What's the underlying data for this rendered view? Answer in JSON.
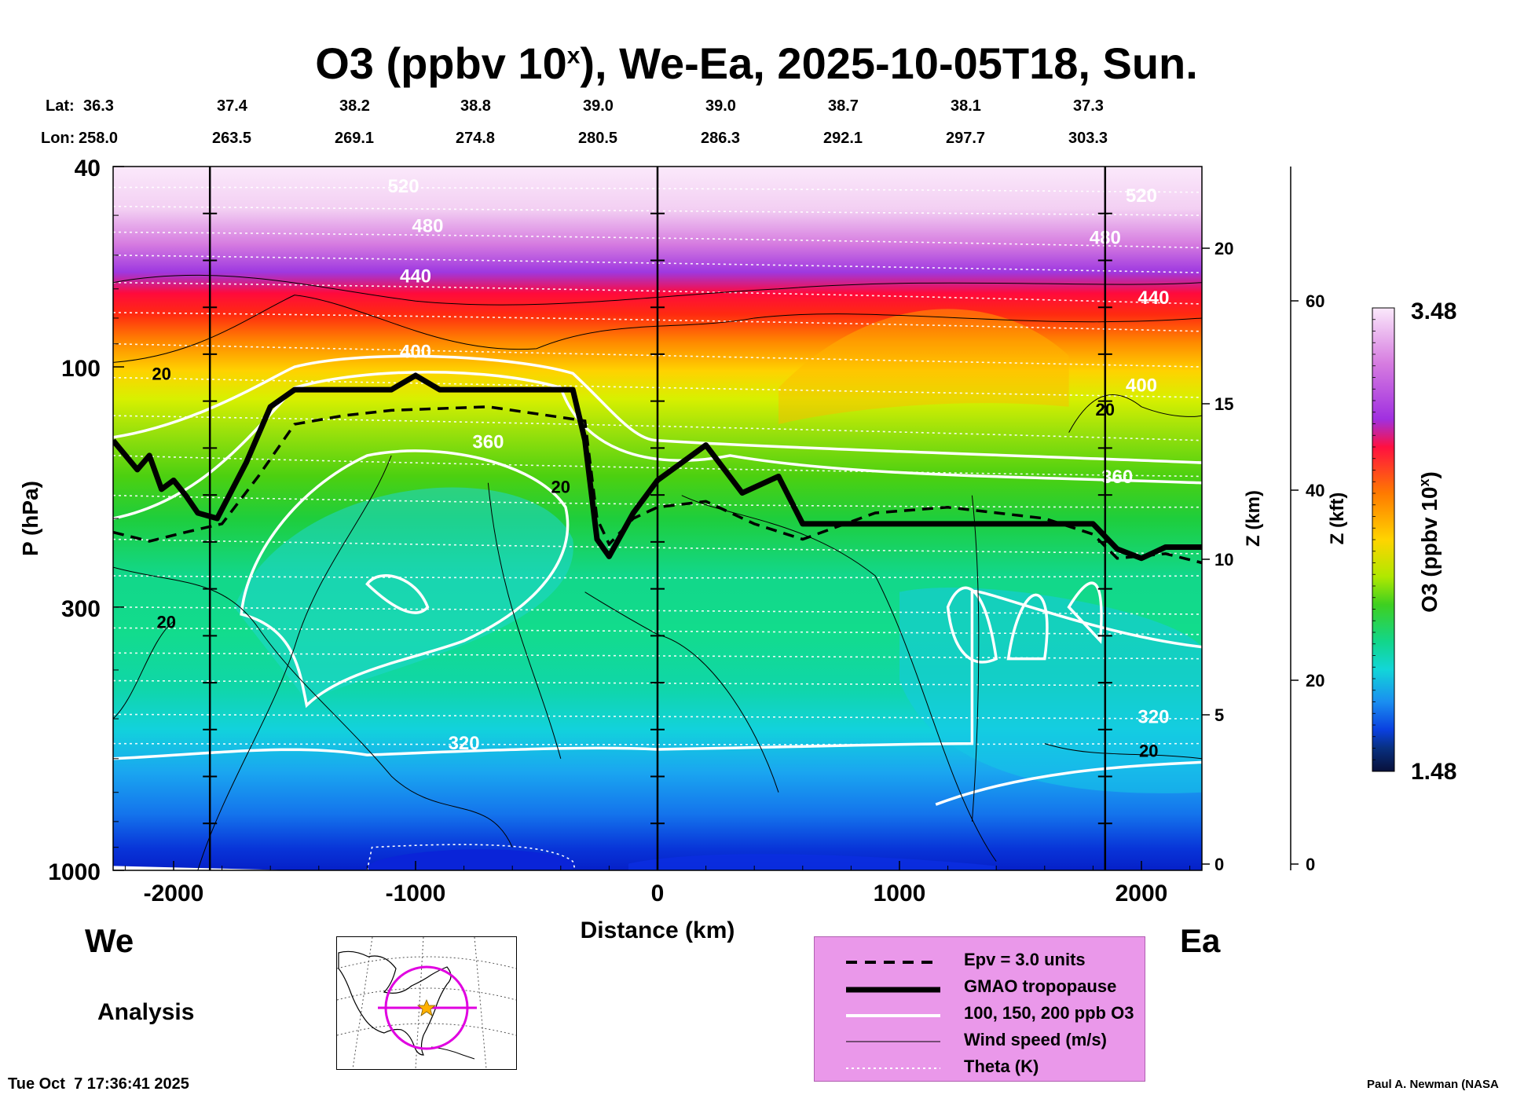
{
  "title": {
    "main": "O3 (ppbv 10",
    "sup": "x",
    "rest": "), We-Ea, 2025-10-05T18, Sun."
  },
  "header": {
    "lat_label": "Lat:",
    "lon_label": "Lon:",
    "lat": [
      "36.3",
      "37.4",
      "38.2",
      "38.8",
      "39.0",
      "39.0",
      "38.7",
      "38.1",
      "37.3"
    ],
    "lon": [
      "258.0",
      "263.5",
      "269.1",
      "274.8",
      "280.5",
      "286.3",
      "292.1",
      "297.7",
      "303.3"
    ]
  },
  "chart_data": {
    "type": "heatmap",
    "title": "O3 (ppbv 10^x), We-Ea, 2025-10-05T18, Sun.",
    "xlabel": "Distance (km)",
    "ylabel": "P (hPa)",
    "xlim": [
      -2250,
      2250
    ],
    "ylim_hPa": [
      1000,
      40
    ],
    "x_ticks": [
      -2000,
      -1000,
      0,
      1000,
      2000
    ],
    "y_ticks": [
      {
        "value": 40,
        "label": "40"
      },
      {
        "value": 100,
        "label": "100"
      },
      {
        "value": 300,
        "label": "300"
      },
      {
        "value": 1000,
        "label": "1000"
      }
    ],
    "z_km_label": "Z (km)",
    "z_km_ticks": [
      "0",
      "5",
      "10",
      "15",
      "20"
    ],
    "z_kft_label": "Z (kft)",
    "z_kft_ticks": [
      "0",
      "20",
      "40",
      "60"
    ],
    "section_markers_km": [
      -1850,
      0,
      1850
    ],
    "colorbar": {
      "label": "O3 (ppbv 10",
      "label_sup": "x",
      "label_end": ")",
      "min": 1.48,
      "max": 3.48,
      "min_label": "1.48",
      "max_label": "3.48"
    },
    "theta_labels": [
      {
        "text": "520",
        "x": -1050,
        "p": 45
      },
      {
        "text": "520",
        "x": 2000,
        "p": 47
      },
      {
        "text": "480",
        "x": -950,
        "p": 54
      },
      {
        "text": "480",
        "x": 1850,
        "p": 57
      },
      {
        "text": "440",
        "x": -1000,
        "p": 68
      },
      {
        "text": "440",
        "x": 2050,
        "p": 75
      },
      {
        "text": "400",
        "x": -1000,
        "p": 96
      },
      {
        "text": "400",
        "x": 2000,
        "p": 112
      },
      {
        "text": "360",
        "x": -700,
        "p": 145
      },
      {
        "text": "360",
        "x": 1900,
        "p": 170
      },
      {
        "text": "320",
        "x": -800,
        "p": 575
      },
      {
        "text": "320",
        "x": 2050,
        "p": 510
      }
    ],
    "wind_labels": [
      {
        "text": "20",
        "x": -2050,
        "p": 106
      },
      {
        "text": "20",
        "x": -400,
        "p": 178
      },
      {
        "text": "20",
        "x": 1850,
        "p": 125
      },
      {
        "text": "20",
        "x": -2030,
        "p": 330
      },
      {
        "text": "20",
        "x": 2030,
        "p": 595
      }
    ],
    "tropopause": [
      {
        "x": -2250,
        "p": 140
      },
      {
        "x": -2150,
        "p": 160
      },
      {
        "x": -2100,
        "p": 150
      },
      {
        "x": -2050,
        "p": 175
      },
      {
        "x": -2000,
        "p": 168
      },
      {
        "x": -1950,
        "p": 180
      },
      {
        "x": -1900,
        "p": 195
      },
      {
        "x": -1820,
        "p": 200
      },
      {
        "x": -1700,
        "p": 155
      },
      {
        "x": -1600,
        "p": 120
      },
      {
        "x": -1500,
        "p": 111
      },
      {
        "x": -1100,
        "p": 111
      },
      {
        "x": -1000,
        "p": 104
      },
      {
        "x": -900,
        "p": 111
      },
      {
        "x": -350,
        "p": 111
      },
      {
        "x": -300,
        "p": 140
      },
      {
        "x": -250,
        "p": 220
      },
      {
        "x": -200,
        "p": 238
      },
      {
        "x": -100,
        "p": 195
      },
      {
        "x": 0,
        "p": 168
      },
      {
        "x": 100,
        "p": 155
      },
      {
        "x": 200,
        "p": 143
      },
      {
        "x": 350,
        "p": 178
      },
      {
        "x": 500,
        "p": 165
      },
      {
        "x": 600,
        "p": 205
      },
      {
        "x": 1000,
        "p": 205
      },
      {
        "x": 1800,
        "p": 205
      },
      {
        "x": 1900,
        "p": 230
      },
      {
        "x": 2000,
        "p": 240
      },
      {
        "x": 2100,
        "p": 228
      },
      {
        "x": 2250,
        "p": 228
      }
    ],
    "epv_3": [
      {
        "x": -2250,
        "p": 213
      },
      {
        "x": -2100,
        "p": 222
      },
      {
        "x": -1950,
        "p": 213
      },
      {
        "x": -1800,
        "p": 205
      },
      {
        "x": -1650,
        "p": 165
      },
      {
        "x": -1500,
        "p": 130
      },
      {
        "x": -1300,
        "p": 125
      },
      {
        "x": -1100,
        "p": 122
      },
      {
        "x": -700,
        "p": 120
      },
      {
        "x": -300,
        "p": 128
      },
      {
        "x": -250,
        "p": 200
      },
      {
        "x": -200,
        "p": 225
      },
      {
        "x": -100,
        "p": 200
      },
      {
        "x": 0,
        "p": 190
      },
      {
        "x": 200,
        "p": 185
      },
      {
        "x": 400,
        "p": 205
      },
      {
        "x": 600,
        "p": 220
      },
      {
        "x": 900,
        "p": 195
      },
      {
        "x": 1200,
        "p": 190
      },
      {
        "x": 1600,
        "p": 200
      },
      {
        "x": 1800,
        "p": 215
      },
      {
        "x": 1900,
        "p": 240
      },
      {
        "x": 2100,
        "p": 235
      },
      {
        "x": 2250,
        "p": 245
      }
    ],
    "legend": [
      {
        "style": "dashed",
        "label": "Epv = 3.0 units"
      },
      {
        "style": "thick",
        "label": "GMAO tropopause"
      },
      {
        "style": "white",
        "label": "100, 150, 200 ppb O3"
      },
      {
        "style": "thin",
        "label": "Wind speed (m/s)"
      },
      {
        "style": "dotted",
        "label": "Theta (K)"
      }
    ]
  },
  "labels": {
    "west": "We",
    "east": "Ea",
    "analysis": "Analysis",
    "timestamp": "Tue Oct  7 17:36:41 2025",
    "credit": "Paul A. Newman (NASA"
  },
  "colors": {
    "legend_bg": "#ea98ea",
    "tropopause": "#000000",
    "map_circle": "#e000e0",
    "map_star": "#ffb000"
  }
}
